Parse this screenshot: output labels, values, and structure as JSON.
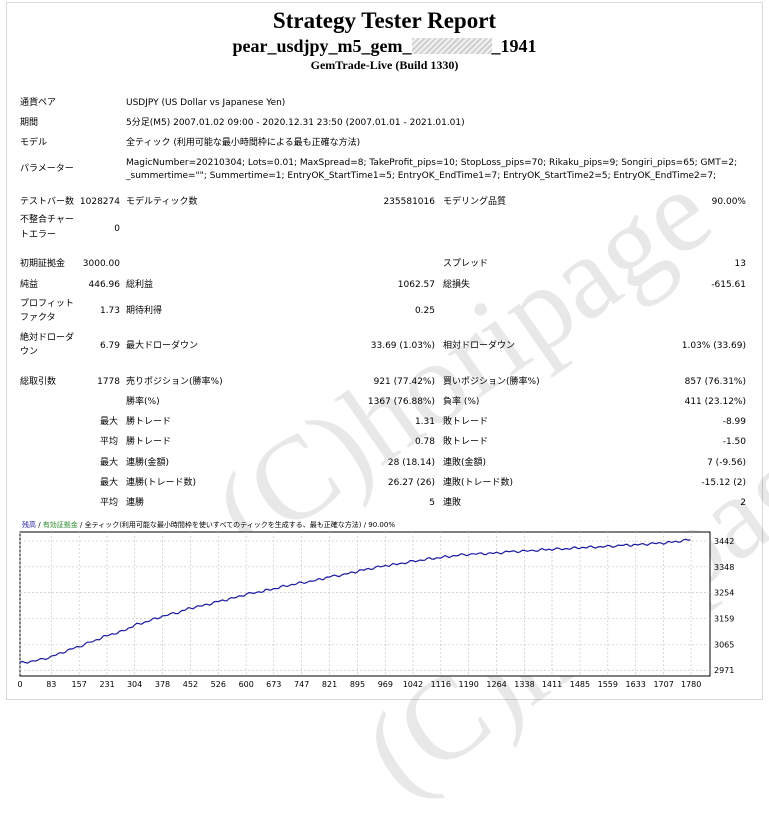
{
  "report": {
    "title": "Strategy Tester Report",
    "subtitle_prefix": "pear_usdjpy_m5_gem_",
    "subtitle_suffix": "_1941",
    "build": "GemTrade-Live (Build 1330)",
    "watermark": "(C)horipage"
  },
  "info": {
    "pair_label": "通貨ペア",
    "pair_value": "USDJPY (US Dollar vs Japanese Yen)",
    "period_label": "期間",
    "period_value": "5分足(M5) 2007.01.02 09:00 - 2020.12.31 23:50 (2007.01.01 - 2021.01.01)",
    "model_label": "モデル",
    "model_value": "全ティック (利用可能な最小時間枠による最も正確な方法)",
    "params_label": "パラメーター",
    "params_line1": "MagicNumber=20210304; Lots=0.01; MaxSpread=8; TakeProfit_pips=10; StopLoss_pips=70; Rikaku_pips=9; Songiri_pips=65; GMT=2;",
    "params_line2": "_summertime=\"\"; Summertime=1; EntryOK_StartTime1=5; EntryOK_EndTime1=7; EntryOK_StartTime2=5; EntryOK_EndTime2=7;"
  },
  "stats": {
    "bars_label": "テストバー数",
    "bars_value": "1028274",
    "ticks_label": "モデルティック数",
    "ticks_value": "235581016",
    "quality_label": "モデリング品質",
    "quality_value": "90.00%",
    "mismatch_label1": "不整合チャー",
    "mismatch_label2": "トエラー",
    "mismatch_value": "0",
    "deposit_label": "初期証拠金",
    "deposit_value": "3000.00",
    "spread_label": "スプレッド",
    "spread_value": "13",
    "net_label": "純益",
    "net_value": "446.96",
    "gross_profit_label": "総利益",
    "gross_profit_value": "1062.57",
    "gross_loss_label": "総損失",
    "gross_loss_value": "-615.61",
    "pf_label1": "プロフィット",
    "pf_label2": "ファクタ",
    "pf_value": "1.73",
    "expected_label": "期待利得",
    "expected_value": "0.25",
    "abs_dd_label1": "絶対ドローダ",
    "abs_dd_label2": "ウン",
    "abs_dd_value": "6.79",
    "max_dd_label": "最大ドローダウン",
    "max_dd_value": "33.69 (1.03%)",
    "rel_dd_label": "相対ドローダウン",
    "rel_dd_value": "1.03% (33.69)",
    "total_trades_label": "総取引数",
    "total_trades_value": "1778",
    "short_label": "売りポジション(勝率%)",
    "short_value": "921 (77.42%)",
    "long_label": "買いポジション(勝率%)",
    "long_value": "857 (76.31%)",
    "win_label": "勝率(%)",
    "win_value": "1367 (76.88%)",
    "loss_label": "負率 (%)",
    "loss_value": "411 (23.12%)",
    "max_label": "最大",
    "avg_label": "平均",
    "largest_win_label": "勝トレード",
    "largest_win_value": "1.31",
    "largest_loss_label": "敗トレード",
    "largest_loss_value": "-8.99",
    "avg_win_label": "勝トレード",
    "avg_win_value": "0.78",
    "avg_loss_label": "敗トレード",
    "avg_loss_value": "-1.50",
    "consec_wins_money_label": "連勝(金額)",
    "consec_wins_money_value": "28 (18.14)",
    "consec_losses_money_label": "連敗(金額)",
    "consec_losses_money_value": "7 (-9.56)",
    "consec_profit_label": "連勝(トレード数)",
    "consec_profit_value": "26.27 (26)",
    "consec_loss_label": "連敗(トレード数)",
    "consec_loss_value": "-15.12 (2)",
    "avg_consec_wins_label": "連勝",
    "avg_consec_wins_value": "5",
    "avg_consec_losses_label": "連敗",
    "avg_consec_losses_value": "2"
  },
  "chart_data": {
    "type": "line",
    "legend": {
      "balance": "残高",
      "equity": "有効証拠金",
      "model": "全ティック(利用可能な最小時間枠を使いすべてのティックを生成する、最も正確な方法)",
      "quality": "90.00%"
    },
    "x_ticks": [
      0,
      83,
      157,
      231,
      304,
      378,
      452,
      526,
      600,
      673,
      747,
      821,
      895,
      969,
      1042,
      1116,
      1190,
      1264,
      1338,
      1411,
      1485,
      1559,
      1633,
      1707,
      1780
    ],
    "y_ticks": [
      2971,
      3065,
      3159,
      3254,
      3348,
      3442
    ],
    "xlim": [
      0,
      1830
    ],
    "ylim": [
      2950,
      3475
    ],
    "series": [
      {
        "name": "残高",
        "color": "#1a1aa0",
        "x": [
          0,
          40,
          83,
          120,
          157,
          200,
          231,
          270,
          304,
          340,
          378,
          420,
          452,
          490,
          526,
          560,
          600,
          640,
          673,
          710,
          747,
          790,
          821,
          860,
          895,
          930,
          969,
          1000,
          1042,
          1080,
          1116,
          1150,
          1190,
          1230,
          1264,
          1300,
          1338,
          1380,
          1411,
          1450,
          1485,
          1520,
          1559,
          1600,
          1633,
          1670,
          1707,
          1740,
          1778
        ],
        "y": [
          2998,
          3005,
          3020,
          3040,
          3058,
          3080,
          3098,
          3112,
          3135,
          3150,
          3168,
          3182,
          3198,
          3208,
          3222,
          3232,
          3248,
          3258,
          3268,
          3280,
          3290,
          3300,
          3312,
          3320,
          3332,
          3342,
          3352,
          3358,
          3368,
          3376,
          3382,
          3388,
          3394,
          3396,
          3398,
          3404,
          3405,
          3410,
          3412,
          3414,
          3418,
          3420,
          3422,
          3427,
          3428,
          3432,
          3435,
          3440,
          3447
        ]
      }
    ]
  }
}
